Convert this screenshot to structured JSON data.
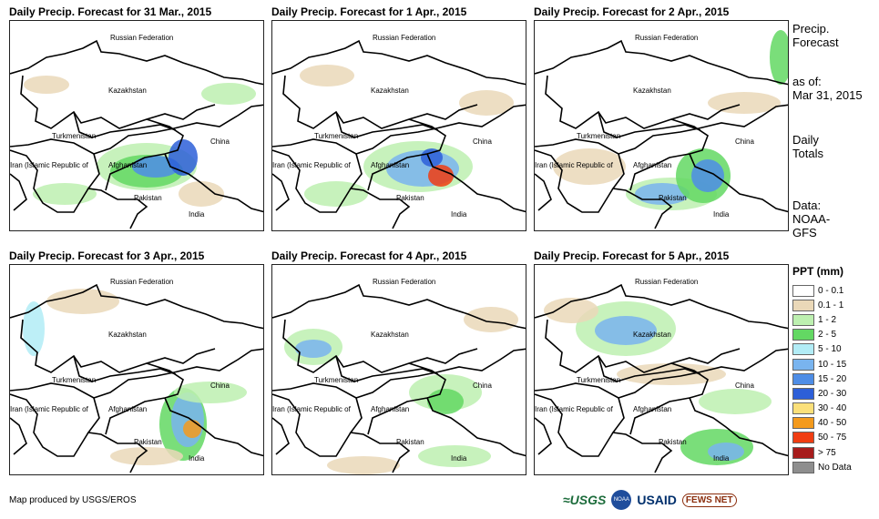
{
  "panels": [
    {
      "title": "Daily Precip. Forecast for 31 Mar., 2015"
    },
    {
      "title": "Daily Precip. Forecast for 1 Apr., 2015"
    },
    {
      "title": "Daily Precip. Forecast for 2 Apr., 2015"
    },
    {
      "title": "Daily Precip. Forecast for 3 Apr., 2015"
    },
    {
      "title": "Daily Precip. Forecast for 4 Apr., 2015"
    },
    {
      "title": "Daily Precip. Forecast for 5 Apr., 2015"
    }
  ],
  "country_labels": {
    "russia": "Russian Federation",
    "kazakhstan": "Kazakhstan",
    "turkmenistan": "Turkmenistan",
    "china": "China",
    "iran": "Iran (Islamic Republic of",
    "afghanistan": "Afghanistan",
    "pakistan": "Pakistan",
    "india": "India"
  },
  "side": {
    "heading_line1": "Precip.",
    "heading_line2": "Forecast",
    "asof_label": "as of:",
    "asof_date": "Mar 31, 2015",
    "totals_line1": "Daily",
    "totals_line2": "Totals",
    "data_label": "Data:",
    "data_src1": "NOAA-",
    "data_src2": "GFS"
  },
  "legend": {
    "title": "PPT (mm)",
    "items": [
      {
        "label": "0 - 0.1",
        "color": "#ffffff"
      },
      {
        "label": "0.1 - 1",
        "color": "#ead8b8"
      },
      {
        "label": "1 - 2",
        "color": "#bdf0b0"
      },
      {
        "label": "2 - 5",
        "color": "#63d863"
      },
      {
        "label": "5 - 10",
        "color": "#b2ecf6"
      },
      {
        "label": "10 - 15",
        "color": "#79b4ef"
      },
      {
        "label": "15 - 20",
        "color": "#4e8de6"
      },
      {
        "label": "20 - 30",
        "color": "#2d5fd8"
      },
      {
        "label": "30 - 40",
        "color": "#fbe07a"
      },
      {
        "label": "40 - 50",
        "color": "#f49a1c"
      },
      {
        "label": "50 - 75",
        "color": "#f03d12"
      },
      {
        "label": "> 75",
        "color": "#a71c1c"
      },
      {
        "label": "No Data",
        "color": "#8e8e8e"
      }
    ]
  },
  "footer": {
    "credit": "Map produced by USGS/EROS",
    "logos": {
      "usgs": "≈USGS",
      "noaa": "NOAA",
      "usaid": "USAID",
      "fews": "FEWS NET"
    }
  }
}
